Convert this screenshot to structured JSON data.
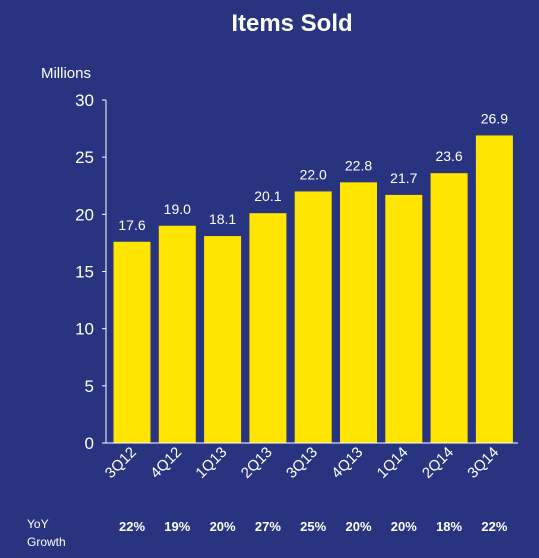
{
  "chart_data": {
    "type": "bar",
    "title": "Items Sold",
    "ylabel": "Millions",
    "categories": [
      "3Q12",
      "4Q12",
      "1Q13",
      "2Q13",
      "3Q13",
      "4Q13",
      "1Q14",
      "2Q14",
      "3Q14"
    ],
    "values": [
      17.6,
      19.0,
      18.1,
      20.1,
      22.0,
      22.8,
      21.7,
      23.6,
      26.9
    ],
    "value_labels": [
      "17.6",
      "19.0",
      "18.1",
      "20.1",
      "22.0",
      "22.8",
      "21.7",
      "23.6",
      "26.9"
    ],
    "ylim": [
      0,
      30
    ],
    "yticks": [
      0,
      5,
      10,
      15,
      20,
      25,
      30
    ],
    "grid": false,
    "growth": {
      "label_line1": "YoY",
      "label_line2": "Growth",
      "values": [
        "22%",
        "19%",
        "20%",
        "27%",
        "25%",
        "20%",
        "20%",
        "18%",
        "22%"
      ]
    }
  },
  "colors": {
    "background": "#283480",
    "bar": "#FFE500",
    "text": "#FFFFFF",
    "axis": "#FFFFFF"
  }
}
